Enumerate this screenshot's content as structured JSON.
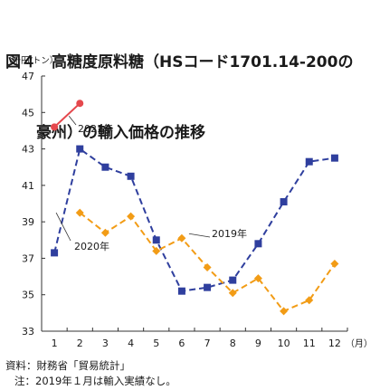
{
  "figure": {
    "title_line1": "図４　高糖度原料糖（HSコード1701.14-200の",
    "title_line2": "　　豪州）の輸入価格の推移",
    "source": "資料：財務省「貿易統計」",
    "note": "注：2019年１月は輸入実績なし。"
  },
  "chart_data": {
    "type": "line",
    "ylabel": "（千円/トン）",
    "xlabel": "",
    "x_unit": "（月）",
    "categories": [
      "1",
      "2",
      "3",
      "4",
      "5",
      "6",
      "7",
      "8",
      "9",
      "10",
      "11",
      "12"
    ],
    "ylim": [
      33,
      47
    ],
    "yticks": [
      33,
      35,
      37,
      39,
      41,
      43,
      45,
      47
    ],
    "grid": false,
    "series": [
      {
        "name": "2021年",
        "color": "#e5484d",
        "dash": "solid",
        "marker": "circle",
        "values": [
          44.2,
          45.5,
          null,
          null,
          null,
          null,
          null,
          null,
          null,
          null,
          null,
          null
        ]
      },
      {
        "name": "2020年",
        "color": "#2f3f9e",
        "dash": "dashed",
        "marker": "square",
        "values": [
          37.3,
          43.0,
          42.0,
          41.5,
          38.0,
          35.2,
          35.4,
          35.8,
          37.8,
          40.1,
          42.3,
          42.5
        ]
      },
      {
        "name": "2019年",
        "color": "#f29c16",
        "dash": "dashed",
        "marker": "diamond",
        "values": [
          null,
          39.5,
          38.4,
          39.3,
          37.4,
          38.1,
          36.5,
          35.1,
          35.9,
          34.1,
          34.7,
          36.7
        ]
      }
    ]
  },
  "colors": {
    "axis": "#333333",
    "text": "#1a1a1a",
    "leader": "#333333"
  }
}
